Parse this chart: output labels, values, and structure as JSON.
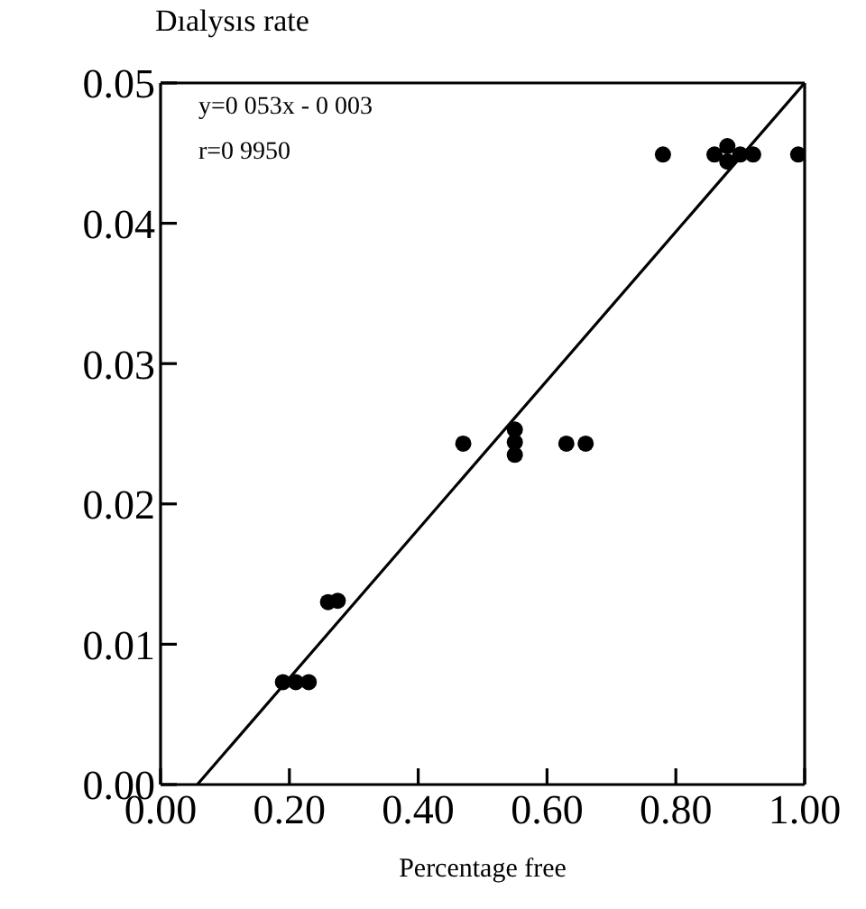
{
  "chart_data": {
    "type": "scatter",
    "ylabel": "Dıalysıs rate",
    "xlabel": "Percentage free",
    "annotations": [
      "y=0 053x - 0 003",
      "r=0 9950"
    ],
    "xlim": [
      0,
      1
    ],
    "ylim": [
      0,
      0.05
    ],
    "xticks": [
      {
        "value": 0,
        "label": "0.00"
      },
      {
        "value": 0.2,
        "label": "0.20"
      },
      {
        "value": 0.4,
        "label": "0.40"
      },
      {
        "value": 0.6,
        "label": "0.60"
      },
      {
        "value": 0.8,
        "label": "0.80"
      },
      {
        "value": 1,
        "label": "1.00"
      }
    ],
    "yticks": [
      {
        "value": 0,
        "label": "0.00"
      },
      {
        "value": 0.01,
        "label": "0.01"
      },
      {
        "value": 0.02,
        "label": "0.02"
      },
      {
        "value": 0.03,
        "label": "0.03"
      },
      {
        "value": 0.04,
        "label": "0.04"
      },
      {
        "value": 0.05,
        "label": "0.05"
      }
    ],
    "series": [
      {
        "type": "scatter",
        "marker": "circle",
        "color": "#000000",
        "x": [
          0.19,
          0.21,
          0.23,
          0.26,
          0.275,
          0.47,
          0.55,
          0.55,
          0.55,
          0.63,
          0.66,
          0.78,
          0.86,
          0.88,
          0.88,
          0.9,
          0.92,
          0.99
        ],
        "values": [
          0.0073,
          0.0073,
          0.0073,
          0.013,
          0.0131,
          0.0243,
          0.0253,
          0.0244,
          0.0235,
          0.0243,
          0.0243,
          0.0449,
          0.0449,
          0.0455,
          0.0444,
          0.0449,
          0.0449,
          0.0449
        ]
      },
      {
        "type": "line",
        "color": "#000000",
        "line_style": "solid",
        "x": [
          0.057,
          1
        ],
        "values": [
          0,
          0.05
        ]
      }
    ]
  }
}
